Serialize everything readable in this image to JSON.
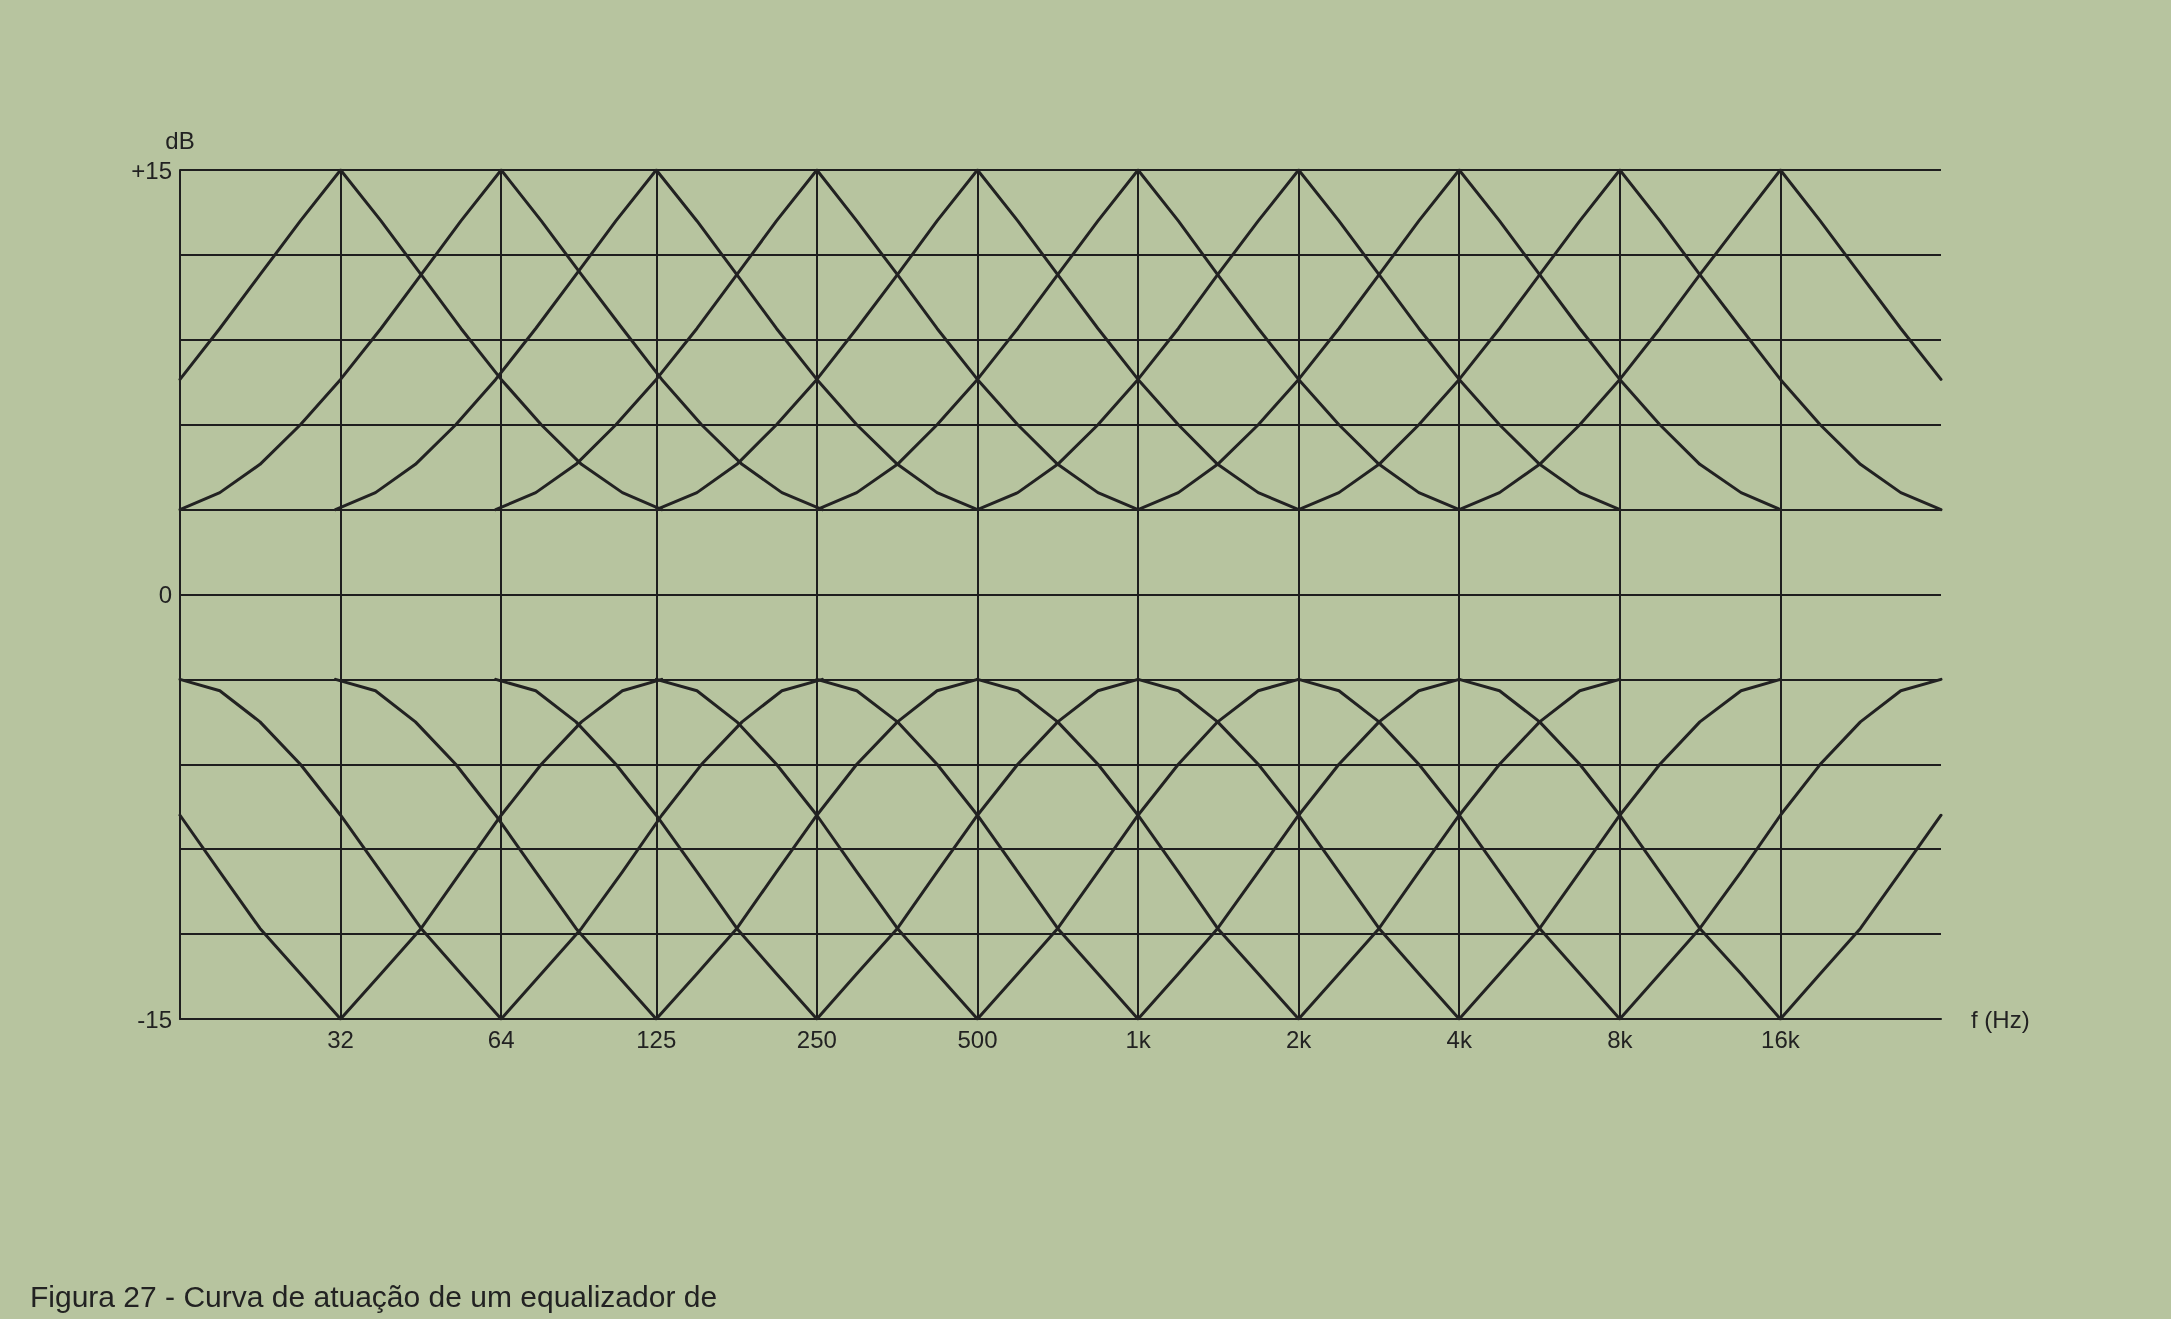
{
  "chart_data": {
    "type": "line",
    "xlabel": "f (Hz)",
    "ylabel": "dB",
    "log": "x",
    "grid": true,
    "marker": "none",
    "line_style": "solid",
    "xlim": [
      16,
      32000
    ],
    "xticks": [
      32,
      64,
      125,
      250,
      500,
      {
        "value": 1000,
        "label": "1k"
      },
      {
        "value": 2000,
        "label": "2k"
      },
      {
        "value": 4000,
        "label": "4k"
      },
      {
        "value": 8000,
        "label": "8k"
      },
      {
        "value": 16000,
        "label": "16k"
      }
    ],
    "ylim": [
      -15,
      15
    ],
    "yticks": [
      {
        "value": -15,
        "label": "-15"
      },
      {
        "value": -12,
        "label": null
      },
      {
        "value": -9,
        "label": null
      },
      {
        "value": -6,
        "label": null
      },
      {
        "value": -3,
        "label": null
      },
      0,
      {
        "value": 3,
        "label": null
      },
      {
        "value": 6,
        "label": null
      },
      {
        "value": 9,
        "label": null
      },
      {
        "value": 12,
        "label": null
      },
      {
        "value": 15,
        "label": "+15"
      }
    ],
    "annotations": [
      "Figura 27 - Curva de atuação de um equalizador de"
    ],
    "series": [
      {
        "color": "#222222",
        "x": [
          16,
          19.0,
          22.6,
          26.9,
          32,
          38.1,
          45.3,
          53.8,
          64,
          76.1,
          90.5,
          108,
          128
        ],
        "values": [
          7.6,
          9.4,
          11.3,
          13.2,
          15,
          13.2,
          11.3,
          9.4,
          7.6,
          6,
          4.6,
          3.6,
          3
        ]
      },
      {
        "color": "#222222",
        "x": [
          16,
          19.0,
          22.6,
          26.9,
          32,
          38.1,
          45.3,
          53.8,
          64,
          76.1,
          90.5,
          108,
          128,
          152,
          181,
          215,
          256
        ],
        "values": [
          3,
          3.6,
          4.6,
          6,
          7.6,
          9.4,
          11.3,
          13.2,
          15,
          13.2,
          11.3,
          9.4,
          7.6,
          6,
          4.6,
          3.6,
          3
        ]
      },
      {
        "color": "#222222",
        "x": [
          31.3,
          37.2,
          44.2,
          52.6,
          62.5,
          74.3,
          88.4,
          105,
          125,
          149,
          177,
          210,
          250,
          297,
          354,
          420,
          500
        ],
        "values": [
          3,
          3.6,
          4.6,
          6,
          7.6,
          9.4,
          11.3,
          13.2,
          15,
          13.2,
          11.3,
          9.4,
          7.6,
          6,
          4.6,
          3.6,
          3
        ]
      },
      {
        "color": "#222222",
        "x": [
          62.5,
          74.3,
          88.4,
          105,
          125,
          149,
          177,
          210,
          250,
          297,
          354,
          420,
          500,
          595,
          707,
          841,
          1000
        ],
        "values": [
          3,
          3.6,
          4.6,
          6,
          7.6,
          9.4,
          11.3,
          13.2,
          15,
          13.2,
          11.3,
          9.4,
          7.6,
          6,
          4.6,
          3.6,
          3
        ]
      },
      {
        "color": "#222222",
        "x": [
          125,
          149,
          177,
          210,
          250,
          297,
          354,
          420,
          500,
          595,
          707,
          841,
          1000,
          1190,
          1410,
          1680,
          2000
        ],
        "values": [
          3,
          3.6,
          4.6,
          6,
          7.6,
          9.4,
          11.3,
          13.2,
          15,
          13.2,
          11.3,
          9.4,
          7.6,
          6,
          4.6,
          3.6,
          3
        ]
      },
      {
        "color": "#222222",
        "x": [
          250,
          297,
          354,
          420,
          500,
          595,
          707,
          841,
          1000,
          1190,
          1410,
          1680,
          2000,
          2380,
          2830,
          3360,
          4000
        ],
        "values": [
          3,
          3.6,
          4.6,
          6,
          7.6,
          9.4,
          11.3,
          13.2,
          15,
          13.2,
          11.3,
          9.4,
          7.6,
          6,
          4.6,
          3.6,
          3
        ]
      },
      {
        "color": "#222222",
        "x": [
          500,
          595,
          707,
          841,
          1000,
          1190,
          1410,
          1680,
          2000,
          2380,
          2830,
          3360,
          4000,
          4760,
          5660,
          6730,
          8000
        ],
        "values": [
          3,
          3.6,
          4.6,
          6,
          7.6,
          9.4,
          11.3,
          13.2,
          15,
          13.2,
          11.3,
          9.4,
          7.6,
          6,
          4.6,
          3.6,
          3
        ]
      },
      {
        "color": "#222222",
        "x": [
          1000,
          1190,
          1410,
          1680,
          2000,
          2380,
          2830,
          3360,
          4000,
          4760,
          5660,
          6730,
          8000,
          9510,
          11300,
          13500,
          16000
        ],
        "values": [
          3,
          3.6,
          4.6,
          6,
          7.6,
          9.4,
          11.3,
          13.2,
          15,
          13.2,
          11.3,
          9.4,
          7.6,
          6,
          4.6,
          3.6,
          3
        ]
      },
      {
        "color": "#222222",
        "x": [
          2000,
          2380,
          2830,
          3360,
          4000,
          4760,
          5660,
          6730,
          8000,
          9510,
          11300,
          13500,
          16000,
          19000,
          22600,
          26900,
          32000
        ],
        "values": [
          3,
          3.6,
          4.6,
          6,
          7.6,
          9.4,
          11.3,
          13.2,
          15,
          13.2,
          11.3,
          9.4,
          7.6,
          6,
          4.6,
          3.6,
          3
        ]
      },
      {
        "color": "#222222",
        "x": [
          4000,
          4760,
          5660,
          6730,
          8000,
          9510,
          11300,
          13500,
          16000,
          19000,
          22600,
          26900,
          32000
        ],
        "values": [
          3,
          3.6,
          4.6,
          6,
          7.6,
          9.4,
          11.3,
          13.2,
          15,
          13.2,
          11.3,
          9.4,
          7.6
        ]
      },
      {
        "color": "#222222",
        "x": [
          16,
          19.0,
          22.6,
          26.9,
          32,
          38.1,
          45.3,
          53.8,
          64,
          76.1,
          90.5,
          108,
          128
        ],
        "values": [
          -7.8,
          -9.8,
          -11.8,
          -13.4,
          -15,
          -13.4,
          -11.8,
          -9.8,
          -7.8,
          -6,
          -4.5,
          -3.4,
          -3
        ]
      },
      {
        "color": "#222222",
        "x": [
          16,
          19.0,
          22.6,
          26.9,
          32,
          38.1,
          45.3,
          53.8,
          64,
          76.1,
          90.5,
          108,
          128,
          152,
          181,
          215,
          256
        ],
        "values": [
          -3,
          -3.4,
          -4.5,
          -6,
          -7.8,
          -9.8,
          -11.8,
          -13.4,
          -15,
          -13.4,
          -11.8,
          -9.8,
          -7.8,
          -6,
          -4.5,
          -3.4,
          -3
        ]
      },
      {
        "color": "#222222",
        "x": [
          31.3,
          37.2,
          44.2,
          52.6,
          62.5,
          74.3,
          88.4,
          105,
          125,
          149,
          177,
          210,
          250,
          297,
          354,
          420,
          500
        ],
        "values": [
          -3,
          -3.4,
          -4.5,
          -6,
          -7.8,
          -9.8,
          -11.8,
          -13.4,
          -15,
          -13.4,
          -11.8,
          -9.8,
          -7.8,
          -6,
          -4.5,
          -3.4,
          -3
        ]
      },
      {
        "color": "#222222",
        "x": [
          62.5,
          74.3,
          88.4,
          105,
          125,
          149,
          177,
          210,
          250,
          297,
          354,
          420,
          500,
          595,
          707,
          841,
          1000
        ],
        "values": [
          -3,
          -3.4,
          -4.5,
          -6,
          -7.8,
          -9.8,
          -11.8,
          -13.4,
          -15,
          -13.4,
          -11.8,
          -9.8,
          -7.8,
          -6,
          -4.5,
          -3.4,
          -3
        ]
      },
      {
        "color": "#222222",
        "x": [
          125,
          149,
          177,
          210,
          250,
          297,
          354,
          420,
          500,
          595,
          707,
          841,
          1000,
          1190,
          1410,
          1680,
          2000
        ],
        "values": [
          -3,
          -3.4,
          -4.5,
          -6,
          -7.8,
          -9.8,
          -11.8,
          -13.4,
          -15,
          -13.4,
          -11.8,
          -9.8,
          -7.8,
          -6,
          -4.5,
          -3.4,
          -3
        ]
      },
      {
        "color": "#222222",
        "x": [
          250,
          297,
          354,
          420,
          500,
          595,
          707,
          841,
          1000,
          1190,
          1410,
          1680,
          2000,
          2380,
          2830,
          3360,
          4000
        ],
        "values": [
          -3,
          -3.4,
          -4.5,
          -6,
          -7.8,
          -9.8,
          -11.8,
          -13.4,
          -15,
          -13.4,
          -11.8,
          -9.8,
          -7.8,
          -6,
          -4.5,
          -3.4,
          -3
        ]
      },
      {
        "color": "#222222",
        "x": [
          500,
          595,
          707,
          841,
          1000,
          1190,
          1410,
          1680,
          2000,
          2380,
          2830,
          3360,
          4000,
          4760,
          5660,
          6730,
          8000
        ],
        "values": [
          -3,
          -3.4,
          -4.5,
          -6,
          -7.8,
          -9.8,
          -11.8,
          -13.4,
          -15,
          -13.4,
          -11.8,
          -9.8,
          -7.8,
          -6,
          -4.5,
          -3.4,
          -3
        ]
      },
      {
        "color": "#222222",
        "x": [
          1000,
          1190,
          1410,
          1680,
          2000,
          2380,
          2830,
          3360,
          4000,
          4760,
          5660,
          6730,
          8000,
          9510,
          11300,
          13500,
          16000
        ],
        "values": [
          -3,
          -3.4,
          -4.5,
          -6,
          -7.8,
          -9.8,
          -11.8,
          -13.4,
          -15,
          -13.4,
          -11.8,
          -9.8,
          -7.8,
          -6,
          -4.5,
          -3.4,
          -3
        ]
      },
      {
        "color": "#222222",
        "x": [
          2000,
          2380,
          2830,
          3360,
          4000,
          4760,
          5660,
          6730,
          8000,
          9510,
          11300,
          13500,
          16000,
          19000,
          22600,
          26900,
          32000
        ],
        "values": [
          -3,
          -3.4,
          -4.5,
          -6,
          -7.8,
          -9.8,
          -11.8,
          -13.4,
          -15,
          -13.4,
          -11.8,
          -9.8,
          -7.8,
          -6,
          -4.5,
          -3.4,
          -3
        ]
      },
      {
        "color": "#222222",
        "x": [
          4000,
          4760,
          5660,
          6730,
          8000,
          9510,
          11300,
          13500,
          16000,
          19000,
          22600,
          26900,
          32000
        ],
        "values": [
          -3,
          -3.4,
          -4.5,
          -6,
          -7.8,
          -9.8,
          -11.8,
          -13.4,
          -15,
          -13.4,
          -11.8,
          -9.8,
          -7.8
        ]
      }
    ]
  }
}
